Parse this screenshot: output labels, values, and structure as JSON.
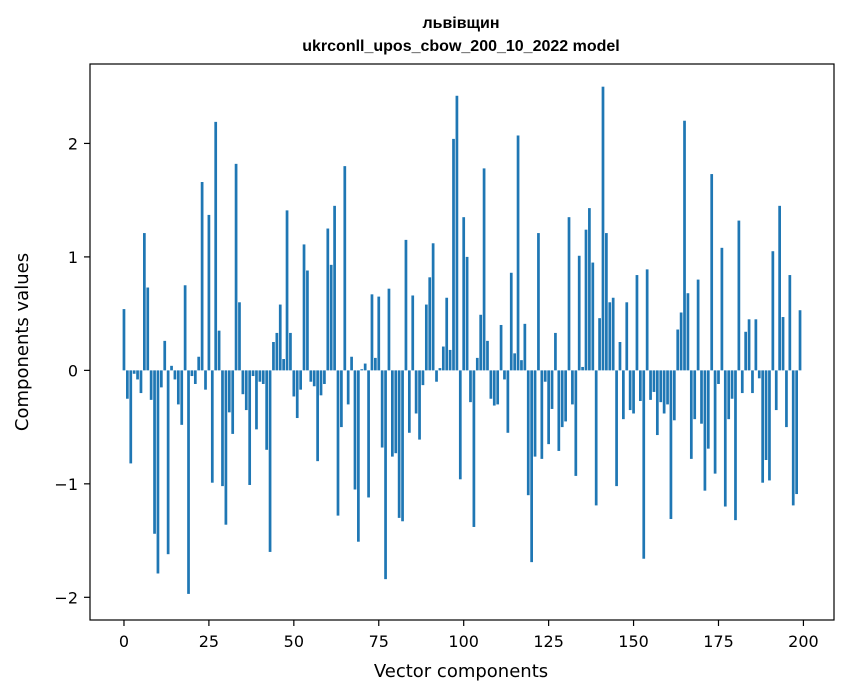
{
  "chart_data": {
    "type": "bar",
    "title_line1": "львівщин",
    "title_line2": "ukrconll_upos_cbow_200_10_2022 model",
    "xlabel": "Vector components",
    "ylabel": "Components values",
    "xlim": [
      -10,
      209
    ],
    "ylim": [
      -2.2,
      2.7
    ],
    "xticks": [
      0,
      25,
      50,
      75,
      100,
      125,
      150,
      175,
      200
    ],
    "yticks": [
      -2,
      -1,
      0,
      1,
      2
    ],
    "ytick_labels": [
      "−2",
      "−1",
      "0",
      "1",
      "2"
    ],
    "grid": false,
    "bar_color": "#1f77b4",
    "values": [
      0.54,
      -0.25,
      -0.82,
      -0.03,
      -0.08,
      -0.2,
      1.21,
      0.73,
      -0.26,
      -1.44,
      -1.79,
      -0.15,
      0.26,
      -1.62,
      0.04,
      -0.08,
      -0.3,
      -0.48,
      0.75,
      -1.97,
      -0.05,
      -0.12,
      0.12,
      1.66,
      -0.17,
      1.37,
      -0.99,
      2.19,
      0.35,
      -1.02,
      -1.36,
      -0.37,
      -0.56,
      1.82,
      0.6,
      -0.21,
      -0.35,
      -1.01,
      -0.05,
      -0.52,
      -0.1,
      -0.12,
      -0.7,
      -1.6,
      0.25,
      0.33,
      0.58,
      0.1,
      1.41,
      0.33,
      -0.23,
      -0.42,
      -0.17,
      1.11,
      0.88,
      -0.1,
      -0.14,
      -0.8,
      -0.22,
      -0.12,
      1.25,
      0.93,
      1.45,
      -1.28,
      -0.5,
      1.8,
      -0.3,
      0.12,
      -1.05,
      -1.51,
      0.01,
      0.06,
      -1.12,
      0.67,
      0.11,
      0.65,
      -0.68,
      -1.84,
      0.72,
      -0.76,
      -0.73,
      -1.3,
      -1.33,
      1.15,
      -0.55,
      0.66,
      -0.38,
      -0.61,
      -0.13,
      0.58,
      0.82,
      1.12,
      -0.1,
      0.02,
      0.21,
      0.64,
      0.18,
      2.04,
      2.42,
      -0.96,
      1.35,
      1.0,
      -0.28,
      -1.38,
      0.11,
      0.49,
      1.78,
      0.26,
      -0.25,
      -0.31,
      -0.3,
      0.4,
      -0.08,
      -0.55,
      0.86,
      0.15,
      2.07,
      0.09,
      0.41,
      -1.1,
      -1.69,
      -0.76,
      1.21,
      -0.78,
      -0.1,
      -0.65,
      -0.34,
      0.33,
      -0.71,
      -0.5,
      -0.45,
      1.35,
      -0.3,
      -0.93,
      1.01,
      0.03,
      1.24,
      1.43,
      0.95,
      -1.19,
      0.46,
      2.5,
      1.21,
      0.6,
      0.64,
      -1.02,
      0.25,
      -0.43,
      0.6,
      -0.35,
      -0.38,
      0.84,
      -0.27,
      -1.66,
      0.89,
      -0.26,
      -0.19,
      -0.57,
      -0.28,
      -0.38,
      -0.3,
      -1.31,
      -0.44,
      0.36,
      0.51,
      2.2,
      0.68,
      -0.78,
      -0.43,
      0.8,
      -0.47,
      -1.06,
      -0.69,
      1.73,
      -0.91,
      -0.12,
      1.08,
      -1.2,
      -0.43,
      -0.25,
      -1.32,
      1.32,
      -0.2,
      0.34,
      0.45,
      -0.2,
      0.45,
      -0.07,
      -0.99,
      -0.79,
      -0.97,
      1.05,
      -0.35,
      1.45,
      0.47,
      -0.5,
      0.84,
      -1.19,
      -1.09,
      0.53
    ]
  }
}
